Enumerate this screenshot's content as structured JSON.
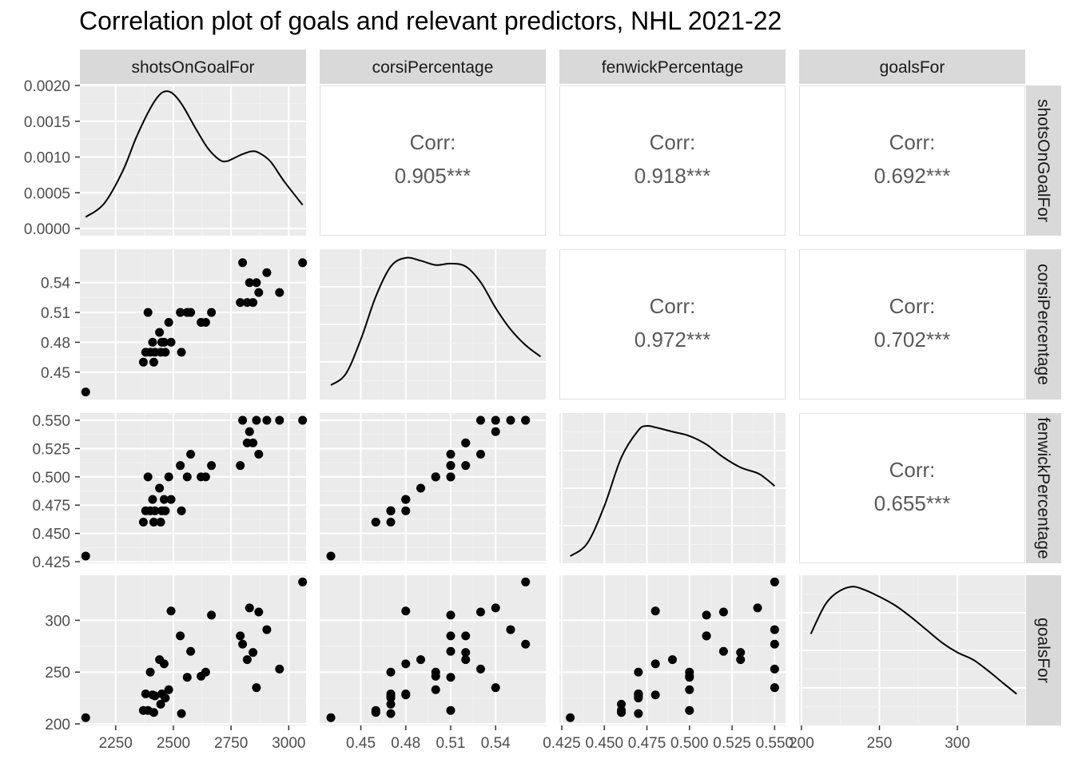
{
  "chart_data": {
    "type": "scatter-matrix",
    "title": "Correlation plot of goals and relevant predictors, NHL 2021-22",
    "variables": [
      "shotsOnGoalFor",
      "corsiPercentage",
      "fenwickPercentage",
      "goalsFor"
    ],
    "corr_label": "Corr:",
    "correlations": [
      {
        "row": 0,
        "col": 1,
        "value": "0.905***"
      },
      {
        "row": 0,
        "col": 2,
        "value": "0.918***"
      },
      {
        "row": 0,
        "col": 3,
        "value": "0.692***"
      },
      {
        "row": 1,
        "col": 2,
        "value": "0.972***"
      },
      {
        "row": 1,
        "col": 3,
        "value": "0.702***"
      },
      {
        "row": 2,
        "col": 3,
        "value": "0.655***"
      }
    ],
    "axes": {
      "shotsOnGoalFor": {
        "lim": [
          2095,
          3075
        ],
        "ticks": [
          2250,
          2500,
          2750,
          3000
        ],
        "tick_labels": [
          "2250",
          "2500",
          "2750",
          "3000"
        ]
      },
      "corsiPercentage": {
        "lim": [
          0.4225,
          0.5735
        ],
        "ticks": [
          0.45,
          0.48,
          0.51,
          0.54
        ],
        "tick_labels": [
          "0.45",
          "0.48",
          "0.51",
          "0.54"
        ]
      },
      "fenwickPercentage": {
        "lim": [
          0.4236,
          0.5564
        ],
        "ticks": [
          0.425,
          0.45,
          0.475,
          0.5,
          0.525,
          0.55
        ],
        "tick_labels": [
          "0.425",
          "0.450",
          "0.475",
          "0.500",
          "0.525",
          "0.550"
        ]
      },
      "goalsFor": {
        "lim": [
          198.5,
          343.5
        ],
        "ticks": [
          200,
          250,
          300
        ],
        "tick_labels": [
          "200",
          "250",
          "300"
        ]
      }
    },
    "density_axis": {
      "lim": [
        -0.0001,
        0.002
      ],
      "ticks": [
        0,
        0.0005,
        0.001,
        0.0015,
        0.002
      ],
      "tick_labels": [
        "0.0000",
        "0.0005",
        "0.0010",
        "0.0015",
        "0.0020"
      ]
    },
    "densities": {
      "shotsOnGoalFor": [
        [
          2120,
          0.00016
        ],
        [
          2200,
          0.00035
        ],
        [
          2280,
          0.0008
        ],
        [
          2340,
          0.00128
        ],
        [
          2400,
          0.00168
        ],
        [
          2440,
          0.00187
        ],
        [
          2470,
          0.00192
        ],
        [
          2500,
          0.00188
        ],
        [
          2540,
          0.00172
        ],
        [
          2600,
          0.00138
        ],
        [
          2650,
          0.00112
        ],
        [
          2700,
          0.00096
        ],
        [
          2730,
          0.00094
        ],
        [
          2760,
          0.00098
        ],
        [
          2800,
          0.00104
        ],
        [
          2840,
          0.00108
        ],
        [
          2870,
          0.00106
        ],
        [
          2920,
          0.00094
        ],
        [
          2980,
          0.00066
        ],
        [
          3060,
          0.00033
        ]
      ],
      "corsiPercentage": [
        [
          0.43,
          0.1
        ],
        [
          0.44,
          0.18
        ],
        [
          0.45,
          0.42
        ],
        [
          0.46,
          0.72
        ],
        [
          0.47,
          0.93
        ],
        [
          0.48,
          0.99
        ],
        [
          0.49,
          0.97
        ],
        [
          0.5,
          0.94
        ],
        [
          0.51,
          0.95
        ],
        [
          0.52,
          0.93
        ],
        [
          0.53,
          0.82
        ],
        [
          0.54,
          0.64
        ],
        [
          0.55,
          0.49
        ],
        [
          0.56,
          0.38
        ],
        [
          0.57,
          0.3
        ]
      ],
      "fenwickPercentage": [
        [
          0.43,
          0.05
        ],
        [
          0.44,
          0.14
        ],
        [
          0.45,
          0.4
        ],
        [
          0.46,
          0.74
        ],
        [
          0.47,
          0.93
        ],
        [
          0.475,
          0.96
        ],
        [
          0.48,
          0.95
        ],
        [
          0.49,
          0.92
        ],
        [
          0.5,
          0.89
        ],
        [
          0.51,
          0.83
        ],
        [
          0.52,
          0.74
        ],
        [
          0.53,
          0.67
        ],
        [
          0.54,
          0.63
        ],
        [
          0.545,
          0.59
        ],
        [
          0.55,
          0.54
        ]
      ],
      "goalsFor": [
        [
          206,
          0.64
        ],
        [
          215,
          0.84
        ],
        [
          223,
          0.93
        ],
        [
          232,
          0.97
        ],
        [
          240,
          0.95
        ],
        [
          250,
          0.9
        ],
        [
          260,
          0.84
        ],
        [
          270,
          0.76
        ],
        [
          280,
          0.67
        ],
        [
          290,
          0.58
        ],
        [
          300,
          0.51
        ],
        [
          310,
          0.46
        ],
        [
          320,
          0.38
        ],
        [
          330,
          0.29
        ],
        [
          338,
          0.22
        ]
      ]
    },
    "points": [
      {
        "shotsOnGoalFor": 2120,
        "corsiPercentage": 0.43,
        "fenwickPercentage": 0.43,
        "goalsFor": 206
      },
      {
        "shotsOnGoalFor": 2370,
        "corsiPercentage": 0.46,
        "fenwickPercentage": 0.46,
        "goalsFor": 213
      },
      {
        "shotsOnGoalFor": 2380,
        "corsiPercentage": 0.47,
        "fenwickPercentage": 0.47,
        "goalsFor": 229
      },
      {
        "shotsOnGoalFor": 2390,
        "corsiPercentage": 0.51,
        "fenwickPercentage": 0.5,
        "goalsFor": 213
      },
      {
        "shotsOnGoalFor": 2400,
        "corsiPercentage": 0.47,
        "fenwickPercentage": 0.47,
        "goalsFor": 250
      },
      {
        "shotsOnGoalFor": 2410,
        "corsiPercentage": 0.48,
        "fenwickPercentage": 0.48,
        "goalsFor": 228
      },
      {
        "shotsOnGoalFor": 2415,
        "corsiPercentage": 0.46,
        "fenwickPercentage": 0.46,
        "goalsFor": 211
      },
      {
        "shotsOnGoalFor": 2420,
        "corsiPercentage": 0.47,
        "fenwickPercentage": 0.47,
        "goalsFor": 227
      },
      {
        "shotsOnGoalFor": 2440,
        "corsiPercentage": 0.49,
        "fenwickPercentage": 0.49,
        "goalsFor": 262
      },
      {
        "shotsOnGoalFor": 2445,
        "corsiPercentage": 0.47,
        "fenwickPercentage": 0.46,
        "goalsFor": 219
      },
      {
        "shotsOnGoalFor": 2450,
        "corsiPercentage": 0.48,
        "fenwickPercentage": 0.47,
        "goalsFor": 229
      },
      {
        "shotsOnGoalFor": 2460,
        "corsiPercentage": 0.48,
        "fenwickPercentage": 0.48,
        "goalsFor": 258
      },
      {
        "shotsOnGoalFor": 2465,
        "corsiPercentage": 0.47,
        "fenwickPercentage": 0.47,
        "goalsFor": 225
      },
      {
        "shotsOnGoalFor": 2480,
        "corsiPercentage": 0.5,
        "fenwickPercentage": 0.5,
        "goalsFor": 233
      },
      {
        "shotsOnGoalFor": 2490,
        "corsiPercentage": 0.48,
        "fenwickPercentage": 0.48,
        "goalsFor": 309
      },
      {
        "shotsOnGoalFor": 2530,
        "corsiPercentage": 0.51,
        "fenwickPercentage": 0.51,
        "goalsFor": 285
      },
      {
        "shotsOnGoalFor": 2535,
        "corsiPercentage": 0.47,
        "fenwickPercentage": 0.47,
        "goalsFor": 210
      },
      {
        "shotsOnGoalFor": 2560,
        "corsiPercentage": 0.51,
        "fenwickPercentage": 0.5,
        "goalsFor": 245
      },
      {
        "shotsOnGoalFor": 2575,
        "corsiPercentage": 0.51,
        "fenwickPercentage": 0.52,
        "goalsFor": 270
      },
      {
        "shotsOnGoalFor": 2620,
        "corsiPercentage": 0.5,
        "fenwickPercentage": 0.5,
        "goalsFor": 246
      },
      {
        "shotsOnGoalFor": 2640,
        "corsiPercentage": 0.5,
        "fenwickPercentage": 0.5,
        "goalsFor": 250
      },
      {
        "shotsOnGoalFor": 2665,
        "corsiPercentage": 0.51,
        "fenwickPercentage": 0.51,
        "goalsFor": 305
      },
      {
        "shotsOnGoalFor": 2790,
        "corsiPercentage": 0.52,
        "fenwickPercentage": 0.51,
        "goalsFor": 285
      },
      {
        "shotsOnGoalFor": 2800,
        "corsiPercentage": 0.56,
        "fenwickPercentage": 0.55,
        "goalsFor": 277
      },
      {
        "shotsOnGoalFor": 2820,
        "corsiPercentage": 0.52,
        "fenwickPercentage": 0.53,
        "goalsFor": 262
      },
      {
        "shotsOnGoalFor": 2830,
        "corsiPercentage": 0.54,
        "fenwickPercentage": 0.54,
        "goalsFor": 312
      },
      {
        "shotsOnGoalFor": 2845,
        "corsiPercentage": 0.52,
        "fenwickPercentage": 0.53,
        "goalsFor": 269
      },
      {
        "shotsOnGoalFor": 2860,
        "corsiPercentage": 0.54,
        "fenwickPercentage": 0.55,
        "goalsFor": 235
      },
      {
        "shotsOnGoalFor": 2870,
        "corsiPercentage": 0.53,
        "fenwickPercentage": 0.52,
        "goalsFor": 308
      },
      {
        "shotsOnGoalFor": 2905,
        "corsiPercentage": 0.55,
        "fenwickPercentage": 0.55,
        "goalsFor": 291
      },
      {
        "shotsOnGoalFor": 2960,
        "corsiPercentage": 0.53,
        "fenwickPercentage": 0.55,
        "goalsFor": 253
      },
      {
        "shotsOnGoalFor": 3060,
        "corsiPercentage": 0.56,
        "fenwickPercentage": 0.55,
        "goalsFor": 337
      }
    ]
  }
}
